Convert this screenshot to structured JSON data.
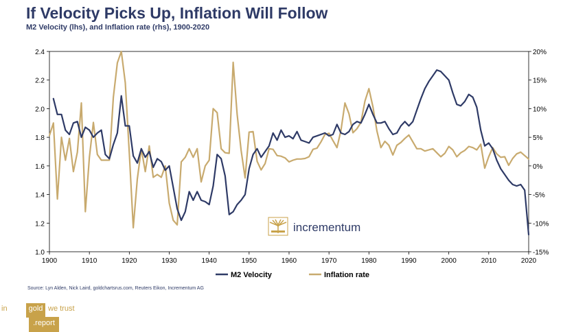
{
  "header": {
    "title": "If Velocity Picks Up, Inflation Will Follow",
    "subtitle": "M2 Velocity (lhs), and Inflation rate (rhs), 1900-2020"
  },
  "source": "Source: Lyn Alden, Nick Laird, goldchartsrus.com, Reuters Eikon, Incrementum AG",
  "logo": {
    "text": "incrementum"
  },
  "brand": {
    "part1": "in",
    "part2": "gold",
    "part3": "we trust",
    "part4": ".report"
  },
  "colors": {
    "velocity": "#2e3a66",
    "inflation": "#c8aa6e",
    "brand_gold": "#c8a24a",
    "axis": "#000000"
  },
  "chart_data": {
    "type": "line",
    "title": "If Velocity Picks Up, Inflation Will Follow",
    "xlim": [
      1900,
      2020
    ],
    "x_ticks": [
      1900,
      1910,
      1920,
      1930,
      1940,
      1950,
      1960,
      1970,
      1980,
      1990,
      2000,
      2010,
      2020
    ],
    "x_tick_labels": [
      "1900",
      "1910",
      "1920",
      "1930",
      "1940",
      "1950",
      "1960",
      "1970",
      "1980",
      "1990",
      "2000",
      "2010",
      "2020"
    ],
    "y_left": {
      "label": "M2 Velocity (lhs)",
      "range": [
        1.0,
        2.4
      ],
      "ticks": [
        1.0,
        1.2,
        1.4,
        1.6,
        1.8,
        2.0,
        2.2,
        2.4
      ],
      "tick_labels": [
        "1.0",
        "1.2",
        "1.4",
        "1.6",
        "1.8",
        "2.0",
        "2.2",
        "2.4"
      ]
    },
    "y_right": {
      "label": "Inflation rate (rhs)",
      "range": [
        -15,
        20
      ],
      "ticks": [
        -15,
        -10,
        -5,
        0,
        5,
        10,
        15,
        20
      ],
      "tick_labels": [
        "-15%",
        "-10%",
        "-5%",
        "0%",
        "5%",
        "10%",
        "15%",
        "20%"
      ]
    },
    "legend": {
      "position": "bottom-center",
      "entries": [
        "M2 Velocity",
        "Inflation rate"
      ]
    },
    "series": [
      {
        "name": "M2 Velocity",
        "axis": "left",
        "x": [
          1901,
          1902,
          1903,
          1904,
          1905,
          1906,
          1907,
          1908,
          1909,
          1910,
          1911,
          1912,
          1913,
          1914,
          1915,
          1916,
          1917,
          1918,
          1919,
          1920,
          1921,
          1922,
          1923,
          1924,
          1925,
          1926,
          1927,
          1928,
          1929,
          1930,
          1931,
          1932,
          1933,
          1934,
          1935,
          1936,
          1937,
          1938,
          1939,
          1940,
          1941,
          1942,
          1943,
          1944,
          1945,
          1946,
          1947,
          1948,
          1949,
          1950,
          1951,
          1952,
          1953,
          1954,
          1955,
          1956,
          1957,
          1958,
          1959,
          1960,
          1961,
          1962,
          1963,
          1964,
          1965,
          1966,
          1967,
          1968,
          1969,
          1970,
          1971,
          1972,
          1973,
          1974,
          1975,
          1976,
          1977,
          1978,
          1979,
          1980,
          1981,
          1982,
          1983,
          1984,
          1985,
          1986,
          1987,
          1988,
          1989,
          1990,
          1991,
          1992,
          1993,
          1994,
          1995,
          1996,
          1997,
          1998,
          1999,
          2000,
          2001,
          2002,
          2003,
          2004,
          2005,
          2006,
          2007,
          2008,
          2009,
          2010,
          2011,
          2012,
          2013,
          2014,
          2015,
          2016,
          2017,
          2018,
          2019,
          2020
        ],
        "values": [
          2.07,
          1.96,
          1.96,
          1.85,
          1.82,
          1.9,
          1.91,
          1.8,
          1.87,
          1.85,
          1.8,
          1.83,
          1.85,
          1.68,
          1.65,
          1.75,
          1.83,
          2.09,
          1.88,
          1.88,
          1.67,
          1.62,
          1.72,
          1.66,
          1.7,
          1.59,
          1.65,
          1.63,
          1.57,
          1.6,
          1.45,
          1.3,
          1.22,
          1.28,
          1.42,
          1.36,
          1.42,
          1.36,
          1.35,
          1.33,
          1.46,
          1.68,
          1.65,
          1.53,
          1.26,
          1.28,
          1.33,
          1.36,
          1.4,
          1.58,
          1.68,
          1.72,
          1.66,
          1.7,
          1.74,
          1.83,
          1.78,
          1.85,
          1.8,
          1.81,
          1.79,
          1.84,
          1.78,
          1.77,
          1.76,
          1.8,
          1.81,
          1.82,
          1.83,
          1.81,
          1.82,
          1.89,
          1.83,
          1.82,
          1.84,
          1.89,
          1.91,
          1.9,
          1.96,
          2.03,
          1.96,
          1.9,
          1.9,
          1.91,
          1.86,
          1.82,
          1.83,
          1.88,
          1.91,
          1.88,
          1.91,
          1.99,
          2.07,
          2.14,
          2.19,
          2.23,
          2.27,
          2.26,
          2.23,
          2.2,
          2.11,
          2.03,
          2.02,
          2.05,
          2.1,
          2.08,
          2.01,
          1.85,
          1.74,
          1.76,
          1.72,
          1.64,
          1.58,
          1.54,
          1.5,
          1.47,
          1.46,
          1.47,
          1.43,
          1.12
        ]
      },
      {
        "name": "Inflation rate",
        "axis": "right",
        "x": [
          1900,
          1901,
          1902,
          1903,
          1904,
          1905,
          1906,
          1907,
          1908,
          1909,
          1910,
          1911,
          1912,
          1913,
          1914,
          1915,
          1916,
          1917,
          1918,
          1919,
          1920,
          1921,
          1922,
          1923,
          1924,
          1925,
          1926,
          1927,
          1928,
          1929,
          1930,
          1931,
          1932,
          1933,
          1934,
          1935,
          1936,
          1937,
          1938,
          1939,
          1940,
          1941,
          1942,
          1943,
          1944,
          1945,
          1946,
          1947,
          1948,
          1949,
          1950,
          1951,
          1952,
          1953,
          1954,
          1955,
          1956,
          1957,
          1958,
          1959,
          1960,
          1961,
          1962,
          1963,
          1964,
          1965,
          1966,
          1967,
          1968,
          1969,
          1970,
          1971,
          1972,
          1973,
          1974,
          1975,
          1976,
          1977,
          1978,
          1979,
          1980,
          1981,
          1982,
          1983,
          1984,
          1985,
          1986,
          1987,
          1988,
          1989,
          1990,
          1991,
          1992,
          1993,
          1994,
          1995,
          1996,
          1997,
          1998,
          1999,
          2000,
          2001,
          2002,
          2003,
          2004,
          2005,
          2006,
          2007,
          2008,
          2009,
          2010,
          2011,
          2012,
          2013,
          2014,
          2015,
          2016,
          2017,
          2018,
          2019,
          2020
        ],
        "values": [
          5.3,
          7.5,
          -5.8,
          5,
          1,
          4.8,
          -1,
          2.4,
          11,
          -8,
          1.5,
          7.6,
          2,
          1,
          1,
          1,
          12,
          18,
          20,
          14.5,
          2.3,
          -10.8,
          -2.3,
          3,
          -1,
          3.5,
          -2,
          -1.5,
          -2,
          0,
          -6.5,
          -9.5,
          -10.3,
          0.7,
          1.5,
          3,
          1.5,
          3,
          -2.8,
          0,
          1,
          10,
          9.3,
          3,
          2.3,
          2.2,
          18.1,
          9,
          2.7,
          -2.1,
          5.9,
          6,
          0.8,
          -0.7,
          0.4,
          3,
          2.9,
          1.8,
          1.7,
          1.4,
          0.7,
          1,
          1.2,
          1.2,
          1.3,
          1.6,
          2.9,
          3.1,
          4.2,
          5.5,
          5.7,
          4.4,
          3.2,
          6.2,
          11,
          9.1,
          5.8,
          6.5,
          7.6,
          11.3,
          13.5,
          10.3,
          6.1,
          3.2,
          4.3,
          3.6,
          1.9,
          3.6,
          4.1,
          4.8,
          5.4,
          4.2,
          3,
          3,
          2.6,
          2.8,
          3,
          2.3,
          1.6,
          2.2,
          3.4,
          2.8,
          1.6,
          2.3,
          2.7,
          3.4,
          3.2,
          2.8,
          3.8,
          -0.4,
          1.6,
          3.2,
          2.1,
          1.5,
          1.6,
          0.1,
          1.3,
          2.1,
          2.4,
          1.8,
          1.2
        ]
      }
    ]
  }
}
